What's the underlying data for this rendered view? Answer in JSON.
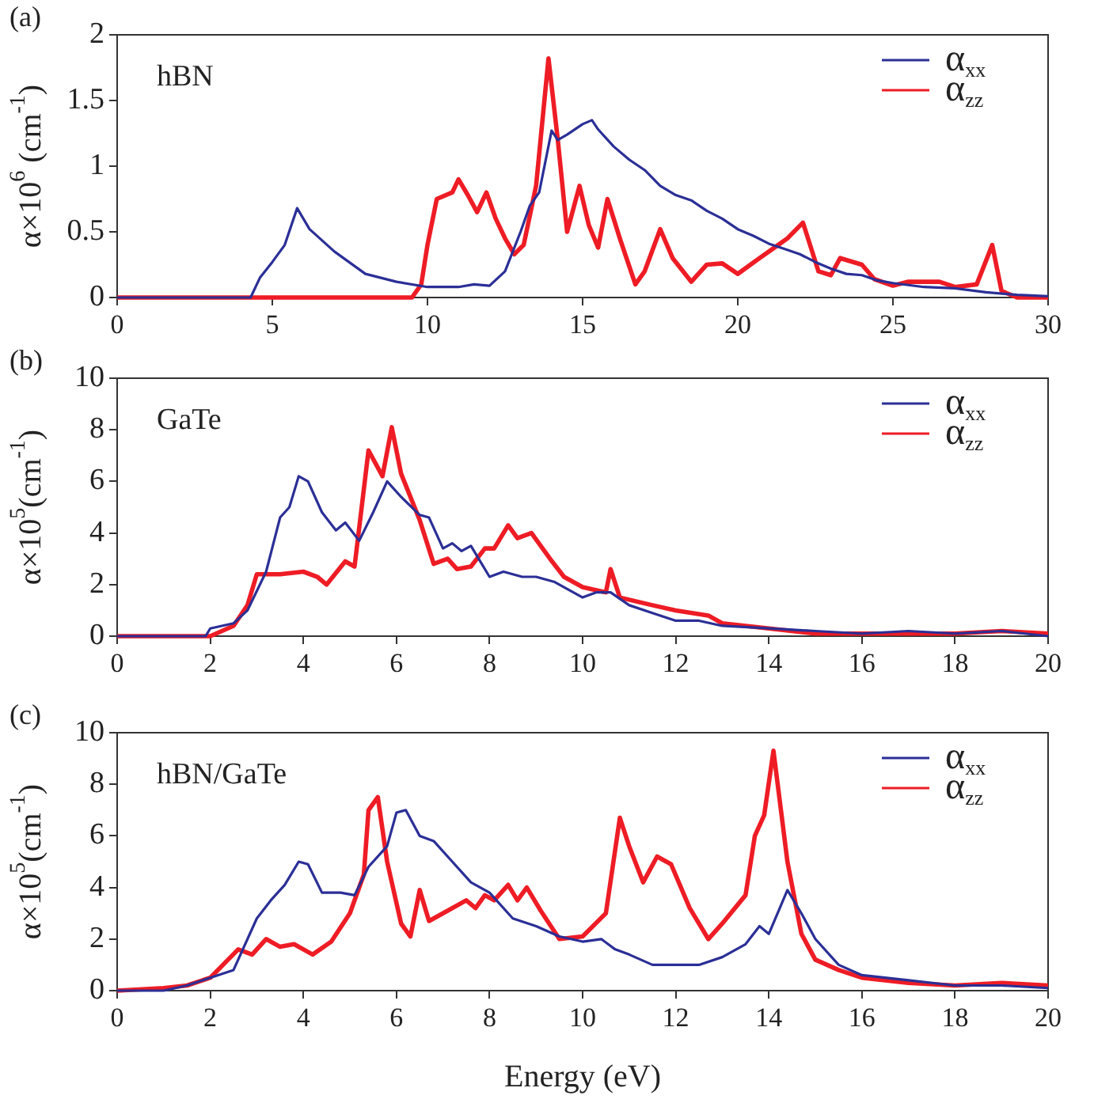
{
  "chart_data": [
    {
      "type": "line",
      "title": "(a)",
      "ylabel": "α×10$^{6}$ (cm$^{-1}$)",
      "annotations": [
        "hBN"
      ],
      "xlim": [
        0,
        30
      ],
      "xticks": [
        0,
        5,
        10,
        15,
        20,
        25,
        30
      ],
      "ylim": [
        0,
        2
      ],
      "yticks": [
        0,
        0.5,
        1,
        1.5,
        2
      ],
      "legend": "top right",
      "marker": "none",
      "line_style": "solid",
      "series": [
        {
          "name": "α$_{xx}$",
          "color": "#2b2f96",
          "x": [
            0,
            4.3,
            4.6,
            5,
            5.4,
            5.8,
            6.2,
            7,
            8,
            9,
            10,
            11,
            11.5,
            12,
            12.5,
            13,
            13.3,
            13.6,
            14,
            14.2,
            14.5,
            15,
            15.3,
            15.5,
            16,
            16.5,
            17,
            17.5,
            18,
            18.5,
            19,
            19.5,
            20,
            20.5,
            21,
            21.5,
            22,
            22.5,
            23,
            23.5,
            24,
            24.5,
            25,
            26,
            27,
            28,
            29,
            30
          ],
          "values": [
            0,
            0,
            0.15,
            0.27,
            0.4,
            0.68,
            0.52,
            0.35,
            0.18,
            0.12,
            0.08,
            0.08,
            0.1,
            0.09,
            0.2,
            0.5,
            0.7,
            0.8,
            1.27,
            1.2,
            1.24,
            1.32,
            1.35,
            1.28,
            1.15,
            1.05,
            0.97,
            0.85,
            0.78,
            0.74,
            0.66,
            0.6,
            0.52,
            0.47,
            0.41,
            0.37,
            0.33,
            0.27,
            0.22,
            0.18,
            0.17,
            0.13,
            0.11,
            0.08,
            0.07,
            0.04,
            0.02,
            0.01
          ]
        },
        {
          "name": "α$_{zz}$",
          "color": "#ee1c25",
          "x": [
            0,
            9.5,
            9.8,
            10,
            10.3,
            10.8,
            11,
            11.3,
            11.6,
            11.9,
            12.2,
            12.5,
            12.8,
            13.1,
            13.5,
            13.9,
            14.2,
            14.5,
            14.9,
            15.2,
            15.5,
            15.8,
            16.2,
            16.7,
            17,
            17.5,
            17.9,
            18.5,
            19,
            19.5,
            20,
            20.7,
            21.3,
            21.6,
            22.1,
            22.6,
            23,
            23.3,
            24,
            24.4,
            25,
            25.5,
            26,
            26.5,
            27,
            27.7,
            28.2,
            28.5,
            29,
            30
          ],
          "values": [
            0,
            0,
            0.1,
            0.4,
            0.75,
            0.8,
            0.9,
            0.78,
            0.65,
            0.8,
            0.6,
            0.45,
            0.33,
            0.4,
            0.85,
            1.82,
            1.2,
            0.5,
            0.85,
            0.55,
            0.38,
            0.75,
            0.45,
            0.1,
            0.2,
            0.52,
            0.3,
            0.12,
            0.25,
            0.26,
            0.18,
            0.3,
            0.4,
            0.45,
            0.57,
            0.2,
            0.17,
            0.3,
            0.25,
            0.14,
            0.09,
            0.12,
            0.12,
            0.12,
            0.08,
            0.1,
            0.4,
            0.05,
            0,
            0
          ]
        }
      ]
    },
    {
      "type": "line",
      "title": "(b)",
      "ylabel": "α×10$^{5}$(cm$^{-1}$)",
      "annotations": [
        "GaTe"
      ],
      "xlim": [
        0,
        20
      ],
      "xticks": [
        0,
        2,
        4,
        6,
        8,
        10,
        12,
        14,
        16,
        18,
        20
      ],
      "ylim": [
        0,
        10
      ],
      "yticks": [
        0,
        2,
        4,
        6,
        8,
        10
      ],
      "legend": "top right",
      "marker": "none",
      "line_style": "solid",
      "series": [
        {
          "name": "α$_{xx}$",
          "color": "#2b2f96",
          "x": [
            0,
            1.9,
            2,
            2.5,
            2.8,
            3.2,
            3.5,
            3.7,
            3.9,
            4.1,
            4.4,
            4.7,
            4.9,
            5.2,
            5.5,
            5.8,
            6.1,
            6.5,
            6.7,
            7,
            7.2,
            7.4,
            7.6,
            8,
            8.3,
            8.7,
            9,
            9.4,
            10,
            10.3,
            10.6,
            11,
            11.5,
            12,
            12.5,
            13,
            14,
            15,
            16,
            17,
            18,
            19,
            20
          ],
          "values": [
            0,
            0,
            0.3,
            0.5,
            1,
            2.5,
            4.6,
            5,
            6.2,
            6,
            4.8,
            4.1,
            4.4,
            3.7,
            4.8,
            6,
            5.4,
            4.7,
            4.6,
            3.4,
            3.6,
            3.3,
            3.5,
            2.3,
            2.5,
            2.3,
            2.3,
            2.1,
            1.5,
            1.7,
            1.7,
            1.2,
            0.9,
            0.6,
            0.6,
            0.4,
            0.3,
            0.2,
            0.1,
            0.2,
            0.1,
            0.2,
            0
          ]
        },
        {
          "name": "α$_{zz}$",
          "color": "#ee1c25",
          "x": [
            0,
            2,
            2.5,
            2.8,
            3,
            3.5,
            4,
            4.3,
            4.5,
            4.9,
            5.1,
            5.4,
            5.7,
            5.9,
            6.1,
            6.5,
            6.8,
            7.1,
            7.3,
            7.6,
            7.9,
            8.1,
            8.4,
            8.6,
            8.9,
            9.3,
            9.6,
            10,
            10.5,
            10.6,
            10.8,
            11.5,
            12,
            12.7,
            13,
            14,
            15,
            16,
            17,
            18,
            19,
            20
          ],
          "values": [
            0,
            0,
            0.4,
            1.2,
            2.4,
            2.4,
            2.5,
            2.3,
            2,
            2.9,
            2.7,
            7.2,
            6.2,
            8.1,
            6.3,
            4.5,
            2.8,
            3,
            2.6,
            2.7,
            3.4,
            3.4,
            4.3,
            3.8,
            4,
            3,
            2.3,
            1.9,
            1.7,
            2.6,
            1.5,
            1.2,
            1,
            0.8,
            0.5,
            0.3,
            0.1,
            0.1,
            0.1,
            0.1,
            0.2,
            0.1
          ]
        }
      ]
    },
    {
      "type": "line",
      "title": "(c)",
      "xlabel": "Energy (eV)",
      "ylabel": "α×10$^{5}$(cm$^{-1}$)",
      "annotations": [
        "hBN/GaTe"
      ],
      "xlim": [
        0,
        20
      ],
      "xticks": [
        0,
        2,
        4,
        6,
        8,
        10,
        12,
        14,
        16,
        18,
        20
      ],
      "ylim": [
        0,
        10
      ],
      "yticks": [
        0,
        2,
        4,
        6,
        8,
        10
      ],
      "legend": "top right",
      "marker": "none",
      "line_style": "solid",
      "series": [
        {
          "name": "α$_{xx}$",
          "color": "#2b2f96",
          "x": [
            0,
            1,
            1.5,
            2,
            2.5,
            3,
            3.3,
            3.6,
            3.9,
            4.1,
            4.4,
            4.8,
            5.1,
            5.4,
            5.8,
            6,
            6.2,
            6.5,
            6.8,
            7.2,
            7.6,
            8,
            8.5,
            9,
            9.5,
            10,
            10.4,
            10.7,
            11,
            11.5,
            12,
            12.5,
            13,
            13.5,
            13.8,
            14,
            14.4,
            14.7,
            15,
            15.5,
            16,
            17,
            18,
            19,
            20
          ],
          "values": [
            0,
            0,
            0.2,
            0.5,
            0.8,
            2.8,
            3.5,
            4.1,
            5,
            4.9,
            3.8,
            3.8,
            3.7,
            4.8,
            5.6,
            6.9,
            7,
            6,
            5.8,
            5,
            4.2,
            3.8,
            2.8,
            2.5,
            2.1,
            1.9,
            2,
            1.6,
            1.4,
            1,
            1,
            1,
            1.3,
            1.8,
            2.5,
            2.2,
            3.9,
            3,
            2,
            1,
            0.6,
            0.4,
            0.2,
            0.2,
            0.1
          ]
        },
        {
          "name": "α$_{zz}$",
          "color": "#ee1c25",
          "x": [
            0,
            1,
            1.5,
            2,
            2.6,
            2.9,
            3.2,
            3.5,
            3.8,
            4.2,
            4.6,
            5,
            5.3,
            5.4,
            5.6,
            5.8,
            6.1,
            6.3,
            6.5,
            6.7,
            7,
            7.5,
            7.7,
            7.9,
            8.1,
            8.4,
            8.6,
            8.8,
            9.1,
            9.5,
            10,
            10.5,
            10.8,
            11,
            11.3,
            11.6,
            11.9,
            12.3,
            12.7,
            13,
            13.5,
            13.7,
            13.9,
            14.1,
            14.4,
            14.7,
            15,
            15.5,
            16,
            17,
            18,
            19,
            20
          ],
          "values": [
            0,
            0.1,
            0.2,
            0.5,
            1.6,
            1.4,
            2,
            1.7,
            1.8,
            1.4,
            1.9,
            3,
            4.5,
            7,
            7.5,
            5,
            2.6,
            2.1,
            3.9,
            2.7,
            3,
            3.5,
            3.2,
            3.7,
            3.5,
            4.1,
            3.5,
            4,
            3.1,
            2,
            2.1,
            3,
            6.7,
            5.6,
            4.2,
            5.2,
            4.9,
            3.2,
            2,
            2.6,
            3.7,
            6,
            6.8,
            9.3,
            5,
            2.2,
            1.2,
            0.8,
            0.5,
            0.3,
            0.2,
            0.3,
            0.2
          ]
        }
      ]
    }
  ]
}
